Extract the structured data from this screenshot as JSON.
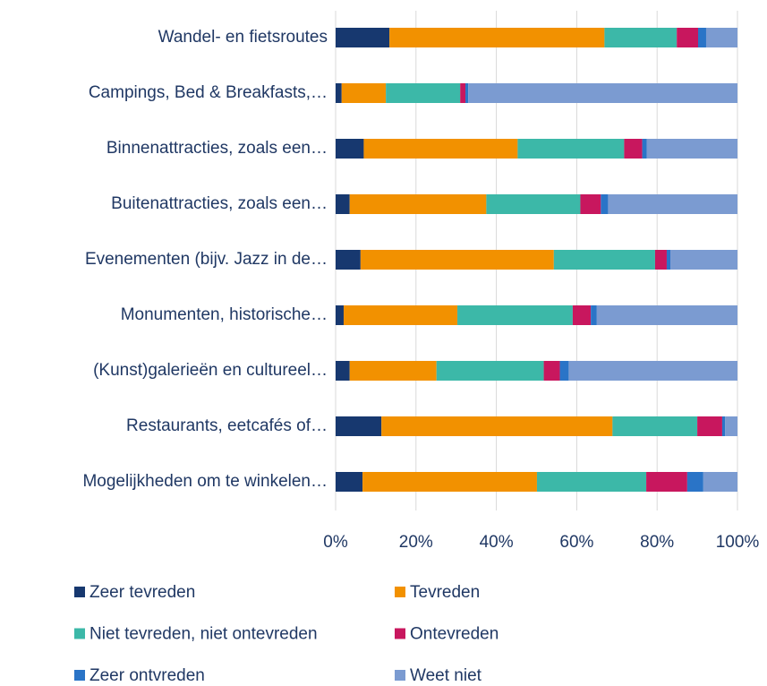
{
  "chart_data": {
    "type": "stacked_barh",
    "categories": [
      "Wandel- en fietsroutes",
      "Campings, Bed & Breakfasts,…",
      "Binnenattracties, zoals een…",
      "Buitenattracties, zoals een…",
      "Evenementen (bijv. Jazz in de…",
      "Monumenten, historische…",
      "(Kunst)galerieën en cultureel…",
      "Restaurants, eetcafés of…",
      "Mogelijkheden om te winkelen…"
    ],
    "series": [
      {
        "name": "Zeer tevreden",
        "color": "#17386f",
        "values": [
          13.4,
          1.5,
          7,
          3.5,
          6.2,
          2,
          3.5,
          11.4,
          6.7
        ]
      },
      {
        "name": "Tevreden",
        "color": "#f29100",
        "values": [
          53.5,
          11,
          38.3,
          34,
          48.1,
          28.3,
          21.6,
          57.5,
          43.4
        ]
      },
      {
        "name": "Niet tevreden, niet ontevreden",
        "color": "#3cb8a8",
        "values": [
          18,
          18.5,
          26.5,
          23.4,
          25.2,
          28.7,
          26.7,
          21.1,
          27.2
        ]
      },
      {
        "name": "Ontevreden",
        "color": "#c8175e",
        "values": [
          5.3,
          1.3,
          4.5,
          5.1,
          2.9,
          4.5,
          4,
          6.2,
          10.2
        ]
      },
      {
        "name": "Zeer ontvreden",
        "color": "#2a74c7",
        "values": [
          2,
          0.7,
          1.1,
          1.8,
          0.9,
          1.5,
          2.2,
          0.7,
          4
        ]
      },
      {
        "name": "Weet niet",
        "color": "#7b9bd1",
        "values": [
          7.8,
          67,
          22.6,
          32.2,
          16.7,
          35,
          42,
          3.1,
          8.5
        ]
      }
    ],
    "xlim": [
      0,
      100
    ],
    "xticks": [
      {
        "value": 0,
        "label": "0%"
      },
      {
        "value": 20,
        "label": "20%"
      },
      {
        "value": 40,
        "label": "40%"
      },
      {
        "value": 60,
        "label": "60%"
      },
      {
        "value": 80,
        "label": "80%"
      },
      {
        "value": 100,
        "label": "100%"
      }
    ],
    "grid": true
  }
}
